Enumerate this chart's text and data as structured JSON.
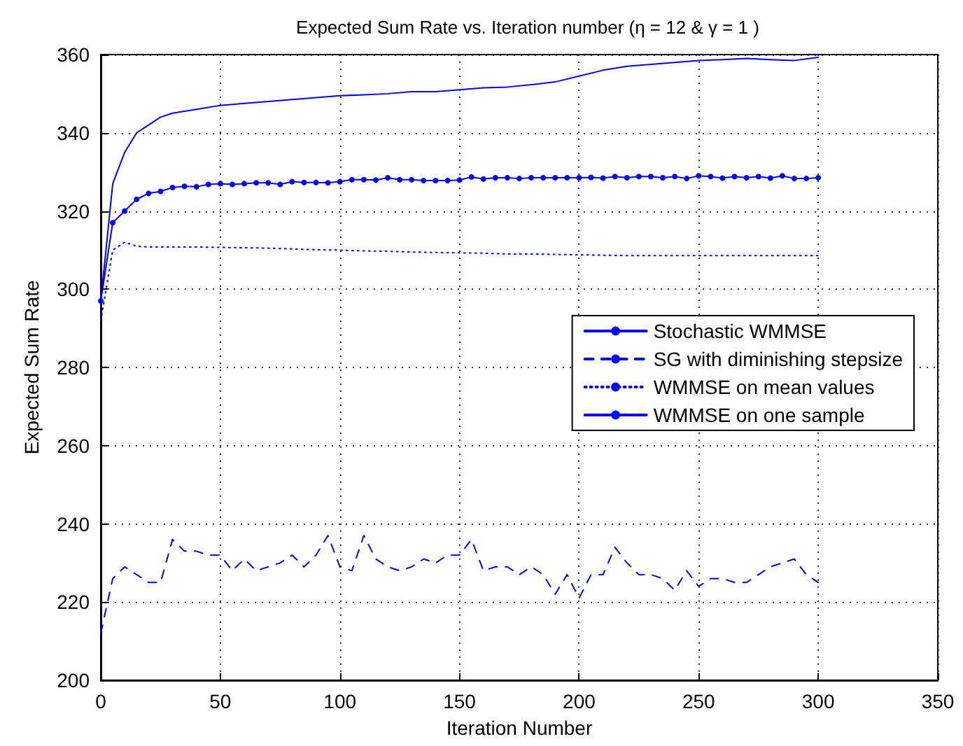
{
  "chart_data": {
    "type": "line",
    "title": "Expected Sum Rate vs. Iteration number (η = 12 & γ = 1 )",
    "xlabel": "Iteration Number",
    "ylabel": "Expected Sum Rate",
    "xlim": [
      0,
      350
    ],
    "xticks": [
      0,
      50,
      100,
      150,
      200,
      250,
      300,
      350
    ],
    "ylim": [
      200,
      360
    ],
    "yticks": [
      200,
      220,
      240,
      260,
      280,
      300,
      320,
      340,
      360
    ],
    "grid": true,
    "legend": "right",
    "series": [
      {
        "name": "Stochastic WMMSE",
        "color": "#0000ff",
        "line_style": "solid",
        "marker": "none",
        "x": [
          0,
          5,
          10,
          15,
          20,
          25,
          30,
          40,
          50,
          60,
          70,
          80,
          90,
          100,
          110,
          120,
          130,
          140,
          150,
          160,
          170,
          180,
          190,
          200,
          210,
          220,
          230,
          240,
          250,
          260,
          270,
          280,
          290,
          300
        ],
        "values": [
          297,
          327,
          335,
          340,
          342,
          344,
          345,
          346,
          347,
          347.5,
          348,
          348.5,
          349,
          349.5,
          349.7,
          350,
          350.5,
          350.5,
          351,
          351.5,
          351.7,
          352.3,
          353,
          354.5,
          356,
          357,
          357.5,
          358,
          358.5,
          358.7,
          359,
          358.7,
          358.5,
          359.3
        ]
      },
      {
        "name": "SG with diminishing stepsize",
        "color": "#0000ff",
        "line_style": "dashed",
        "marker": "none",
        "x": [
          0,
          5,
          10,
          15,
          20,
          25,
          30,
          35,
          40,
          45,
          50,
          55,
          60,
          65,
          70,
          75,
          80,
          85,
          90,
          95,
          100,
          105,
          110,
          115,
          120,
          125,
          130,
          135,
          140,
          145,
          150,
          155,
          160,
          165,
          170,
          175,
          180,
          185,
          190,
          195,
          200,
          205,
          210,
          215,
          220,
          225,
          230,
          235,
          240,
          245,
          250,
          255,
          260,
          265,
          270,
          275,
          280,
          285,
          290,
          295,
          300
        ],
        "values": [
          212,
          226,
          229,
          227,
          225,
          225,
          236,
          233,
          233,
          232,
          232,
          228,
          231,
          228,
          229,
          230,
          232,
          229,
          232,
          237,
          229,
          228,
          237,
          231,
          229,
          228,
          229,
          231,
          230,
          232,
          232,
          236,
          228,
          229,
          229,
          227,
          229,
          227,
          222,
          227,
          221,
          227,
          227,
          234,
          230,
          227,
          227,
          226,
          223,
          228,
          224,
          226,
          226,
          225,
          225,
          227,
          229,
          230,
          231,
          227,
          225
        ]
      },
      {
        "name": "WMMSE on mean values",
        "color": "#0000ff",
        "line_style": "dotted",
        "marker": "none",
        "x": [
          0,
          5,
          10,
          15,
          20,
          30,
          40,
          50,
          60,
          70,
          80,
          90,
          100,
          110,
          120,
          130,
          140,
          150,
          160,
          170,
          180,
          190,
          200,
          210,
          220,
          230,
          240,
          250,
          260,
          270,
          280,
          290,
          300
        ],
        "values": [
          292,
          310,
          312,
          311,
          310.8,
          310.8,
          310.8,
          310.7,
          310.6,
          310.5,
          310.3,
          310.1,
          310,
          309.8,
          309.7,
          309.5,
          309.4,
          309.3,
          309.2,
          309,
          309,
          308.9,
          308.8,
          308.7,
          308.6,
          308.6,
          308.6,
          308.6,
          308.6,
          308.6,
          308.6,
          308.6,
          308.6
        ]
      },
      {
        "name": "WMMSE on one sample",
        "color": "#0000ff",
        "line_style": "solid",
        "marker": "circle",
        "x": [
          0,
          5,
          10,
          15,
          20,
          25,
          30,
          35,
          40,
          45,
          50,
          55,
          60,
          65,
          70,
          75,
          80,
          85,
          90,
          95,
          100,
          105,
          110,
          115,
          120,
          125,
          130,
          135,
          140,
          145,
          150,
          155,
          160,
          165,
          170,
          175,
          180,
          185,
          190,
          195,
          200,
          205,
          210,
          215,
          220,
          225,
          230,
          235,
          240,
          245,
          250,
          255,
          260,
          265,
          270,
          275,
          280,
          285,
          290,
          295,
          300
        ],
        "values": [
          297,
          317,
          320,
          323,
          324.5,
          325,
          326,
          326.3,
          326.2,
          326.8,
          327,
          326.8,
          327,
          327.2,
          327.2,
          326.8,
          327.5,
          327.3,
          327.3,
          327.2,
          327.5,
          328,
          328,
          327.9,
          328.5,
          328,
          328,
          327.8,
          327.8,
          327.8,
          327.9,
          328.7,
          328.2,
          328.5,
          328.5,
          328.3,
          328.5,
          328.5,
          328.5,
          328.5,
          328.5,
          328.6,
          328.4,
          328.8,
          328.5,
          328.8,
          328.8,
          328.5,
          328.8,
          328.3,
          329,
          328.8,
          328.4,
          328.8,
          328.5,
          328.8,
          328.4,
          329,
          328.3,
          328.3,
          328.5
        ]
      }
    ]
  }
}
